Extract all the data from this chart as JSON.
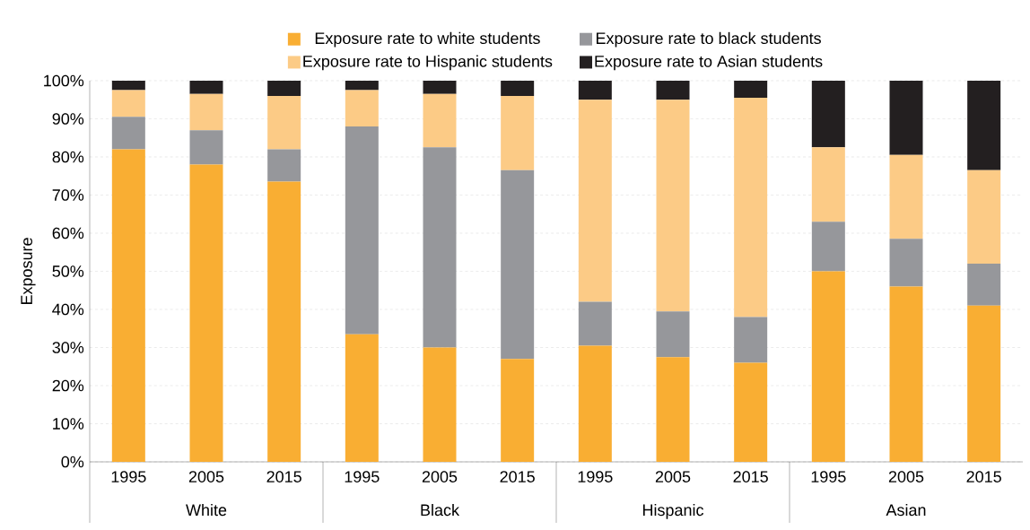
{
  "chart_data": {
    "type": "bar",
    "stacked": true,
    "ylabel": "Exposure",
    "categories": [
      "1995",
      "2005",
      "2015",
      "1995",
      "2005",
      "2015",
      "1995",
      "2005",
      "2015",
      "1995",
      "2005",
      "2015"
    ],
    "series": [
      {
        "name": "Exposure rate to white students",
        "color": "#f9ae33",
        "values": [
          82,
          78,
          73.5,
          33.5,
          30,
          27,
          30.5,
          27.5,
          26,
          50,
          46,
          41
        ]
      },
      {
        "name": "Exposure rate to black students",
        "color": "#96979b",
        "values": [
          8.5,
          9,
          8.5,
          54.5,
          52.5,
          49.5,
          11.5,
          12,
          12,
          13,
          12.5,
          11
        ]
      },
      {
        "name": "Exposure rate to Hispanic students",
        "color": "#fccb86",
        "values": [
          7,
          9.5,
          14,
          9.5,
          14,
          19.5,
          53,
          55.5,
          57.5,
          19.5,
          22,
          24.5
        ]
      },
      {
        "name": "Exposure rate to Asian students",
        "color": "#231f20",
        "values": [
          2.5,
          3.5,
          4,
          2.5,
          3.5,
          4,
          5,
          5,
          4.5,
          17.5,
          19.5,
          23.5
        ]
      }
    ],
    "ylim": [
      0,
      100
    ],
    "yticks": [
      {
        "value": 0,
        "label": "0%"
      },
      {
        "value": 10,
        "label": "10%"
      },
      {
        "value": 20,
        "label": "20%"
      },
      {
        "value": 30,
        "label": "30%"
      },
      {
        "value": 40,
        "label": "40%"
      },
      {
        "value": 50,
        "label": "50%"
      },
      {
        "value": 60,
        "label": "60%"
      },
      {
        "value": 70,
        "label": "70%"
      },
      {
        "value": 80,
        "label": "80%"
      },
      {
        "value": 90,
        "label": "90%"
      },
      {
        "value": 100,
        "label": "100%"
      }
    ],
    "grid": "y",
    "legend": "top",
    "annotations": [
      "White",
      "Black",
      "Hispanic",
      "Asian"
    ]
  }
}
